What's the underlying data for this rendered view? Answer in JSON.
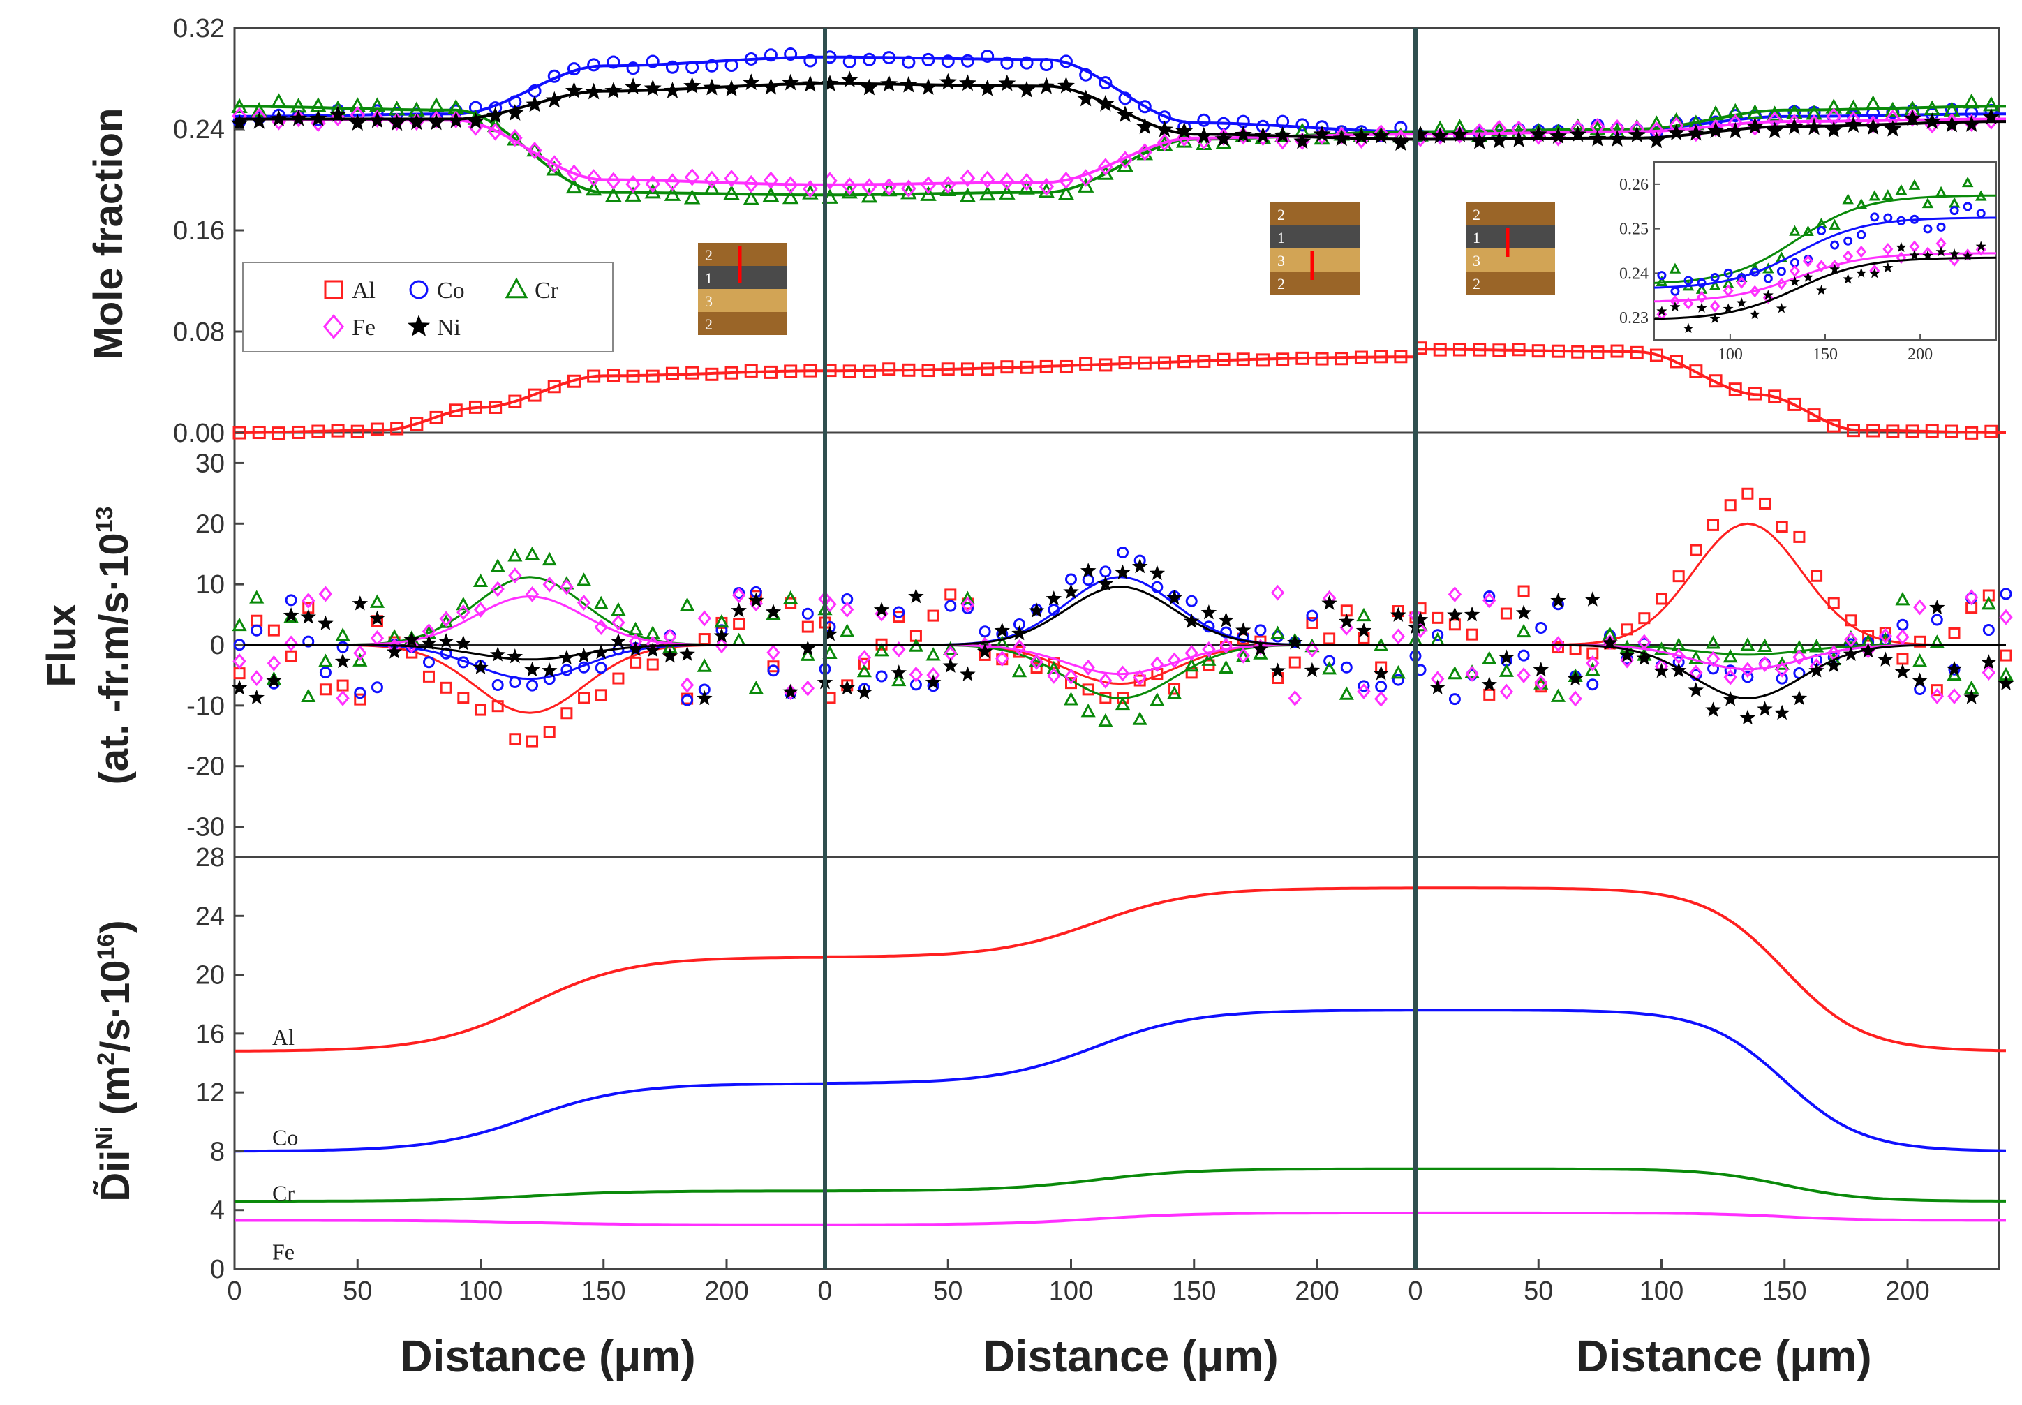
{
  "colors": {
    "Al": "#ff2020",
    "Co": "#1010ff",
    "Cr": "#0a8a0a",
    "Fe": "#ff30ff",
    "Ni": "#000000"
  },
  "legend": [
    {
      "name": "Al",
      "marker": "square"
    },
    {
      "name": "Co",
      "marker": "circle"
    },
    {
      "name": "Cr",
      "marker": "triangle"
    },
    {
      "name": "Fe",
      "marker": "diamond"
    },
    {
      "name": "Ni",
      "marker": "star"
    }
  ],
  "chart_data": {
    "type": "line",
    "columns": 3,
    "x_range": [
      0,
      240
    ],
    "x_ticks": [
      [
        0,
        50,
        100,
        150,
        200
      ],
      [
        0,
        50,
        100,
        150,
        200
      ],
      [
        0,
        50,
        100,
        150,
        200
      ]
    ],
    "xlabel": "Distance (μm)",
    "panels": [
      {
        "id": "mole-fraction",
        "ylabel": "Mole fraction",
        "ylim": [
          0.0,
          0.32
        ],
        "yticks": [
          "0.00",
          "0.08",
          "0.16",
          "0.24",
          "0.32"
        ],
        "series": [
          {
            "name": "Al",
            "segments": [
              [
                0,
                0
              ],
              [
                60,
                0.002
              ],
              [
                100,
                0.02
              ],
              [
                150,
                0.045
              ],
              [
                240,
                0.049
              ]
            ],
            "right": [
              [
                0,
                0.049
              ],
              [
                240,
                0.06
              ]
            ],
            "third": [
              [
                0,
                0.066
              ],
              [
                90,
                0.064
              ],
              [
                140,
                0.03
              ],
              [
                180,
                0.002
              ],
              [
                240,
                0
              ]
            ]
          },
          {
            "name": "Co",
            "segments": [
              [
                0,
                0.25
              ],
              [
                90,
                0.252
              ],
              [
                150,
                0.29
              ],
              [
                240,
                0.297
              ]
            ],
            "right": [
              [
                0,
                0.297
              ],
              [
                90,
                0.295
              ],
              [
                150,
                0.245
              ],
              [
                240,
                0.238
              ]
            ],
            "third": [
              [
                0,
                0.238
              ],
              [
                90,
                0.24
              ],
              [
                150,
                0.25
              ],
              [
                240,
                0.252
              ]
            ]
          },
          {
            "name": "Cr",
            "segments": [
              [
                0,
                0.258
              ],
              [
                90,
                0.255
              ],
              [
                150,
                0.19
              ],
              [
                240,
                0.188
              ]
            ],
            "right": [
              [
                0,
                0.188
              ],
              [
                90,
                0.19
              ],
              [
                150,
                0.232
              ],
              [
                240,
                0.238
              ]
            ],
            "third": [
              [
                0,
                0.238
              ],
              [
                90,
                0.24
              ],
              [
                150,
                0.255
              ],
              [
                240,
                0.258
              ]
            ]
          },
          {
            "name": "Fe",
            "segments": [
              [
                0,
                0.248
              ],
              [
                90,
                0.247
              ],
              [
                150,
                0.2
              ],
              [
                240,
                0.196
              ]
            ],
            "right": [
              [
                0,
                0.196
              ],
              [
                90,
                0.198
              ],
              [
                150,
                0.233
              ],
              [
                240,
                0.236
              ]
            ],
            "third": [
              [
                0,
                0.236
              ],
              [
                90,
                0.238
              ],
              [
                150,
                0.246
              ],
              [
                240,
                0.248
              ]
            ]
          },
          {
            "name": "Ni",
            "segments": [
              [
                0,
                0.248
              ],
              [
                90,
                0.248
              ],
              [
                150,
                0.27
              ],
              [
                240,
                0.276
              ]
            ],
            "right": [
              [
                0,
                0.276
              ],
              [
                90,
                0.274
              ],
              [
                150,
                0.236
              ],
              [
                240,
                0.232
              ]
            ],
            "third": [
              [
                0,
                0.232
              ],
              [
                90,
                0.233
              ],
              [
                150,
                0.242
              ],
              [
                240,
                0.246
              ]
            ]
          }
        ],
        "inset": {
          "ylim": [
            0.225,
            0.265
          ],
          "yticks": [
            "0.23",
            "0.24",
            "0.25",
            "0.26"
          ],
          "x_range": [
            60,
            240
          ],
          "xticks": [
            "100",
            "150",
            "200"
          ]
        },
        "layer_stacks": [
          {
            "layers": [
              "2",
              "1",
              "3",
              "2"
            ],
            "marker_layer": 0
          },
          {
            "layers": [
              "2",
              "1",
              "3",
              "2"
            ],
            "marker_layer": 2
          },
          {
            "layers": [
              "2",
              "1",
              "3",
              "2"
            ],
            "marker_layer": 1
          }
        ]
      },
      {
        "id": "flux",
        "ylabel_line1": "Flux",
        "ylabel_line2": "(at. -fr.m/s·10",
        "ylabel_exp": "13",
        "ylim": [
          -35,
          35
        ],
        "yticks": [
          "-30",
          "-20",
          "-10",
          "0",
          "10",
          "20",
          "30"
        ],
        "peaks": [
          {
            "name": "Al",
            "amps": [
              -14,
              -8,
              25
            ]
          },
          {
            "name": "Co",
            "amps": [
              -7,
              14,
              -5
            ]
          },
          {
            "name": "Cr",
            "amps": [
              14,
              -11,
              -2
            ]
          },
          {
            "name": "Fe",
            "amps": [
              10,
              -6,
              -5
            ]
          },
          {
            "name": "Ni",
            "amps": [
              -3,
              12,
              -11
            ]
          }
        ]
      },
      {
        "id": "diffusivity",
        "ylabel": "D̃ii",
        "ylabel_super": "Ni",
        "ylabel_rest": " (m",
        "ylabel_sq": "2",
        "ylabel_end": "/s·10",
        "ylabel_exp": "16",
        "ylabel_close": ")",
        "ylim": [
          0,
          28
        ],
        "yticks": [
          "0",
          "4",
          "8",
          "12",
          "16",
          "20",
          "24",
          "28"
        ],
        "series": [
          {
            "name": "Al",
            "levels": [
              14.8,
              21.2,
              25.9,
              14.8
            ]
          },
          {
            "name": "Co",
            "levels": [
              8.0,
              12.6,
              17.6,
              8.0
            ]
          },
          {
            "name": "Cr",
            "levels": [
              4.6,
              5.3,
              6.8,
              4.6
            ]
          },
          {
            "name": "Fe",
            "levels": [
              3.3,
              3.0,
              3.8,
              3.3
            ]
          }
        ],
        "labels": [
          "Al",
          "Co",
          "Cr",
          "Fe"
        ]
      }
    ]
  }
}
